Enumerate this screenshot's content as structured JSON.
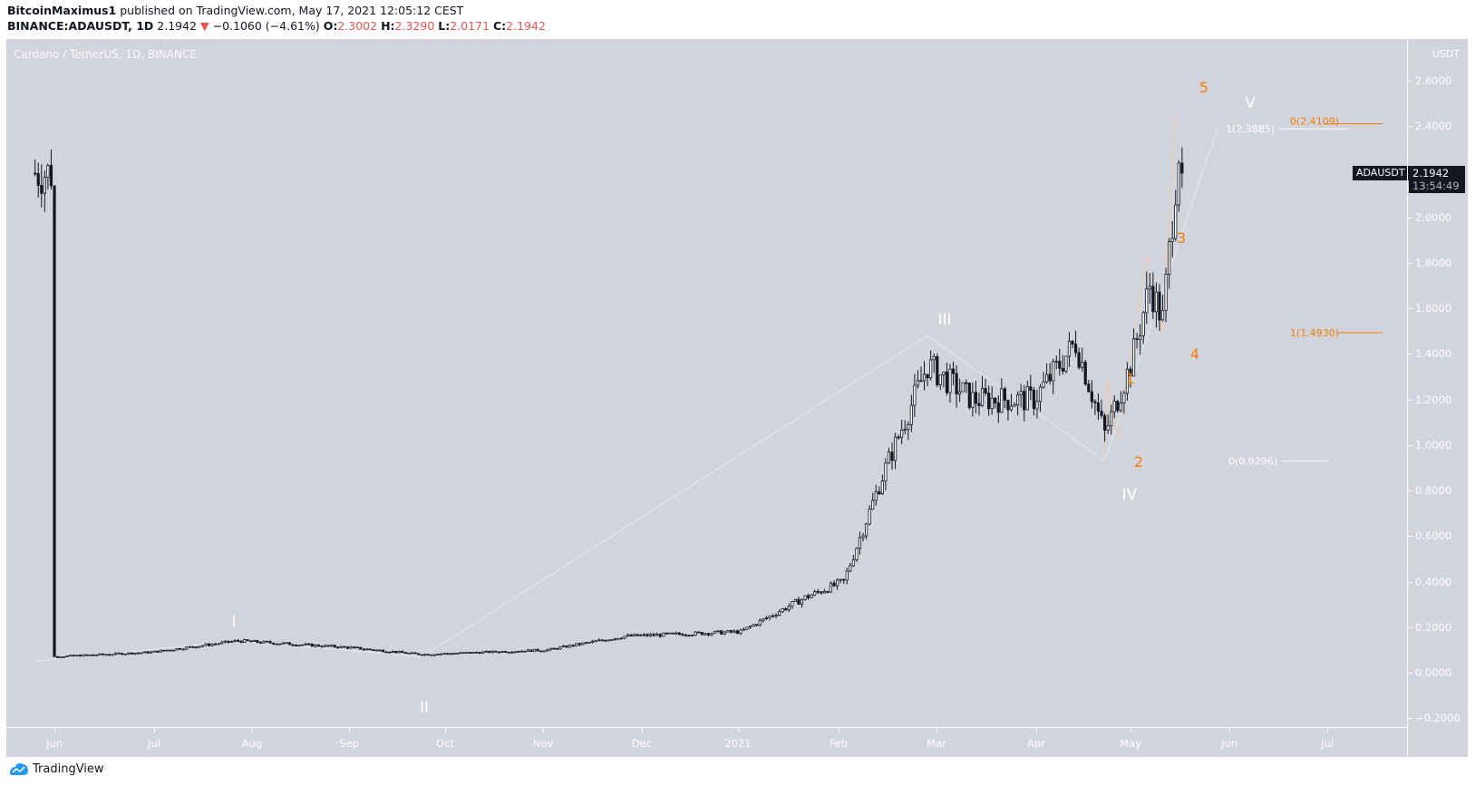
{
  "header": {
    "author": "BitcoinMaximus1",
    "published_text": "published on TradingView.com, May 17, 2021 12:05:12 CEST",
    "symbol": "BINANCE:ADAUSDT, 1D",
    "last": "2.1942",
    "change": "−0.1060 (−4.61%)",
    "direction_icon": "triangle-down-icon",
    "o_label": "O:",
    "o": "2.3002",
    "h_label": "H:",
    "h": "2.3290",
    "l_label": "L:",
    "l": "2.0171",
    "c_label": "C:",
    "c": "2.1942",
    "down_color": "#ef5350"
  },
  "chart": {
    "title": "Cardano / TetherUS, 1D, BINANCE",
    "currency": "USDT",
    "symbol_tag": "ADAUSDT",
    "last_price": "2.1942",
    "countdown": "13:54:49",
    "background": "#d1d4dc",
    "accent_orange": "#f57c00",
    "label_white": "#ffffff"
  },
  "price_axis": {
    "ticks": [
      "2.6000",
      "2.4000",
      "2.2000",
      "2.0000",
      "1.8000",
      "1.6000",
      "1.4000",
      "1.2000",
      "1.0000",
      "0.8000",
      "0.6000",
      "0.4000",
      "0.2000",
      "0.0000",
      "−0.2000"
    ]
  },
  "time_axis": {
    "labels": [
      "Jun",
      "Jul",
      "Aug",
      "Sep",
      "Oct",
      "Nov",
      "Dec",
      "2021",
      "Feb",
      "Mar",
      "Apr",
      "May",
      "Jun",
      "Jul"
    ]
  },
  "annotations": {
    "elliott_major": [
      "I",
      "II",
      "III",
      "IV",
      "V"
    ],
    "elliott_minor": [
      "1",
      "2",
      "3",
      "4",
      "5"
    ],
    "fib_white_top": "1(2.3885)",
    "fib_white_bottom": "0(0.9296)",
    "fib_orange_top": "0(2.4109)",
    "fib_orange_bottom": "1(1.4930)"
  },
  "footer": {
    "brand": "TradingView",
    "logo_icon": "tradingview-logo-icon"
  },
  "chart_data": {
    "type": "candlestick",
    "title": "Cardano / TetherUS, 1D, BINANCE",
    "xlabel": "",
    "ylabel": "USDT",
    "ylim": [
      -0.25,
      2.7
    ],
    "x_ticks": [
      "Jun",
      "Jul",
      "Aug",
      "Sep",
      "Oct",
      "Nov",
      "Dec",
      "2021",
      "Feb",
      "Mar",
      "Apr",
      "May",
      "Jun",
      "Jul"
    ],
    "y_ticks": [
      2.6,
      2.4,
      2.2,
      2.0,
      1.8,
      1.6,
      1.4,
      1.2,
      1.0,
      0.8,
      0.6,
      0.4,
      0.2,
      0.0,
      -0.2
    ],
    "last": {
      "open": 2.3002,
      "high": 2.329,
      "low": 2.0171,
      "close": 2.1942,
      "change": -0.106,
      "change_pct": -4.61
    },
    "approx_close_path": [
      {
        "date": "2020-06-01",
        "close": 0.07
      },
      {
        "date": "2020-07-01",
        "close": 0.09
      },
      {
        "date": "2020-07-28",
        "close": 0.14
      },
      {
        "date": "2020-09-01",
        "close": 0.11
      },
      {
        "date": "2020-09-23",
        "close": 0.08
      },
      {
        "date": "2020-11-01",
        "close": 0.1
      },
      {
        "date": "2020-11-25",
        "close": 0.16
      },
      {
        "date": "2020-12-31",
        "close": 0.18
      },
      {
        "date": "2021-01-20",
        "close": 0.33
      },
      {
        "date": "2021-02-01",
        "close": 0.4
      },
      {
        "date": "2021-02-14",
        "close": 0.9
      },
      {
        "date": "2021-02-27",
        "close": 1.35
      },
      {
        "date": "2021-03-13",
        "close": 1.2
      },
      {
        "date": "2021-04-01",
        "close": 1.2
      },
      {
        "date": "2021-04-14",
        "close": 1.45
      },
      {
        "date": "2021-04-23",
        "close": 1.05
      },
      {
        "date": "2021-05-01",
        "close": 1.35
      },
      {
        "date": "2021-05-07",
        "close": 1.7
      },
      {
        "date": "2021-05-11",
        "close": 1.55
      },
      {
        "date": "2021-05-16",
        "close": 2.3
      },
      {
        "date": "2021-05-17",
        "close": 2.1942
      }
    ],
    "elliott_waves": {
      "major": [
        {
          "label": "I",
          "price": 0.14
        },
        {
          "label": "II",
          "price": 0.07
        },
        {
          "label": "III",
          "price": 1.48
        },
        {
          "label": "IV",
          "price": 0.93
        },
        {
          "label": "V",
          "price": 2.39
        }
      ],
      "minor": [
        {
          "label": "1",
          "price": 1.28
        },
        {
          "label": "2",
          "price": 1.03
        },
        {
          "label": "3",
          "price": 1.83
        },
        {
          "label": "4",
          "price": 1.5
        },
        {
          "label": "5",
          "price": 2.46
        }
      ]
    },
    "fib_levels": [
      {
        "label": "1(2.3885)",
        "value": 2.3885,
        "color": "#ffffff"
      },
      {
        "label": "0(0.9296)",
        "value": 0.9296,
        "color": "#ffffff"
      },
      {
        "label": "0(2.4109)",
        "value": 2.4109,
        "color": "#f57c00"
      },
      {
        "label": "1(1.4930)",
        "value": 1.493,
        "color": "#f57c00"
      }
    ]
  }
}
